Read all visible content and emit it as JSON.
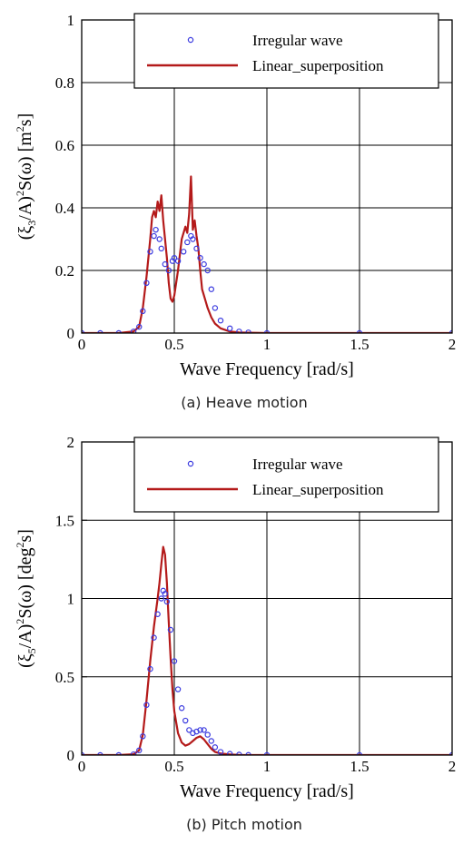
{
  "chart_data": [
    {
      "type": "scatter",
      "caption": "(a) Heave motion",
      "xlabel": "Wave Frequency [rad/s]",
      "ylabel_parts": [
        "(ξ",
        "3",
        "/A)",
        "2",
        "S(ω) [m",
        "2",
        "s]"
      ],
      "xlim": [
        0,
        2
      ],
      "ylim": [
        0,
        1
      ],
      "xticks": [
        0,
        0.5,
        1,
        1.5,
        2
      ],
      "xtick_labels": [
        "0",
        "0.5",
        "1",
        "1.5",
        "2"
      ],
      "yticks": [
        0,
        0.2,
        0.4,
        0.6,
        0.8,
        1
      ],
      "ytick_labels": [
        "0",
        "0.2",
        "0.4",
        "0.6",
        "0.8",
        "1"
      ],
      "grid": true,
      "legend_position": "top-right",
      "series": [
        {
          "name": "Irregular wave",
          "marker": "circle",
          "color": "#3a3adf",
          "x": [
            0,
            0.1,
            0.2,
            0.28,
            0.31,
            0.33,
            0.35,
            0.37,
            0.39,
            0.4,
            0.42,
            0.43,
            0.45,
            0.47,
            0.49,
            0.5,
            0.52,
            0.55,
            0.57,
            0.59,
            0.6,
            0.62,
            0.64,
            0.66,
            0.68,
            0.7,
            0.72,
            0.75,
            0.8,
            0.85,
            0.9,
            1.0,
            1.5,
            2.0
          ],
          "y": [
            0,
            0,
            0,
            0.005,
            0.02,
            0.07,
            0.16,
            0.26,
            0.31,
            0.33,
            0.3,
            0.27,
            0.22,
            0.2,
            0.23,
            0.24,
            0.23,
            0.26,
            0.29,
            0.31,
            0.3,
            0.27,
            0.24,
            0.22,
            0.2,
            0.14,
            0.08,
            0.04,
            0.015,
            0.005,
            0.002,
            0,
            0,
            0
          ]
        },
        {
          "name": "Linear_superposition",
          "marker": "line",
          "color": "#b41a1a",
          "x": [
            0,
            0.1,
            0.2,
            0.28,
            0.31,
            0.33,
            0.35,
            0.37,
            0.38,
            0.39,
            0.4,
            0.41,
            0.42,
            0.43,
            0.44,
            0.45,
            0.46,
            0.47,
            0.48,
            0.49,
            0.5,
            0.52,
            0.54,
            0.56,
            0.57,
            0.58,
            0.59,
            0.6,
            0.61,
            0.62,
            0.63,
            0.64,
            0.65,
            0.66,
            0.67,
            0.68,
            0.7,
            0.72,
            0.75,
            0.8,
            0.85,
            0.9,
            1.0,
            1.5,
            2.0
          ],
          "y": [
            0,
            0,
            0,
            0.005,
            0.02,
            0.08,
            0.18,
            0.3,
            0.37,
            0.39,
            0.37,
            0.42,
            0.39,
            0.44,
            0.36,
            0.3,
            0.24,
            0.16,
            0.11,
            0.1,
            0.12,
            0.2,
            0.3,
            0.34,
            0.32,
            0.38,
            0.5,
            0.33,
            0.36,
            0.31,
            0.27,
            0.2,
            0.14,
            0.12,
            0.1,
            0.08,
            0.05,
            0.03,
            0.015,
            0.005,
            0.002,
            0.001,
            0,
            0,
            0
          ]
        }
      ]
    },
    {
      "type": "scatter",
      "caption": "(b) Pitch motion",
      "xlabel": "Wave Frequency [rad/s]",
      "ylabel_parts": [
        "(ξ",
        "5",
        "/A)",
        "2",
        "S(ω) [deg",
        "2",
        "s]"
      ],
      "xlim": [
        0,
        2
      ],
      "ylim": [
        0,
        2
      ],
      "xticks": [
        0,
        0.5,
        1,
        1.5,
        2
      ],
      "xtick_labels": [
        "0",
        "0.5",
        "1",
        "1.5",
        "2"
      ],
      "yticks": [
        0,
        0.5,
        1,
        1.5,
        2
      ],
      "ytick_labels": [
        "0",
        "0.5",
        "1",
        "1.5",
        "2"
      ],
      "grid": true,
      "legend_position": "top-right",
      "series": [
        {
          "name": "Irregular wave",
          "marker": "circle",
          "color": "#3a3adf",
          "x": [
            0,
            0.1,
            0.2,
            0.28,
            0.31,
            0.33,
            0.35,
            0.37,
            0.39,
            0.41,
            0.43,
            0.44,
            0.45,
            0.46,
            0.48,
            0.5,
            0.52,
            0.54,
            0.56,
            0.58,
            0.6,
            0.62,
            0.64,
            0.66,
            0.68,
            0.7,
            0.72,
            0.75,
            0.8,
            0.85,
            0.9,
            1.0,
            1.5,
            2.0
          ],
          "y": [
            0,
            0,
            0,
            0.005,
            0.03,
            0.12,
            0.32,
            0.55,
            0.75,
            0.9,
            1.0,
            1.05,
            1.03,
            0.98,
            0.8,
            0.6,
            0.42,
            0.3,
            0.22,
            0.16,
            0.14,
            0.15,
            0.16,
            0.16,
            0.13,
            0.09,
            0.05,
            0.02,
            0.008,
            0.003,
            0.001,
            0,
            0,
            0
          ]
        },
        {
          "name": "Linear_superposition",
          "marker": "line",
          "color": "#b41a1a",
          "x": [
            0,
            0.1,
            0.2,
            0.28,
            0.31,
            0.33,
            0.35,
            0.37,
            0.39,
            0.41,
            0.42,
            0.43,
            0.44,
            0.45,
            0.46,
            0.47,
            0.48,
            0.49,
            0.5,
            0.52,
            0.54,
            0.56,
            0.58,
            0.6,
            0.62,
            0.64,
            0.66,
            0.68,
            0.7,
            0.72,
            0.75,
            0.8,
            0.85,
            0.9,
            1.0,
            1.5,
            2.0
          ],
          "y": [
            0,
            0,
            0,
            0.005,
            0.03,
            0.13,
            0.35,
            0.6,
            0.82,
            1.0,
            1.1,
            1.22,
            1.33,
            1.28,
            1.1,
            0.85,
            0.62,
            0.42,
            0.28,
            0.14,
            0.08,
            0.06,
            0.07,
            0.09,
            0.11,
            0.12,
            0.1,
            0.07,
            0.04,
            0.02,
            0.01,
            0.004,
            0.001,
            0,
            0,
            0,
            0
          ]
        }
      ]
    }
  ]
}
